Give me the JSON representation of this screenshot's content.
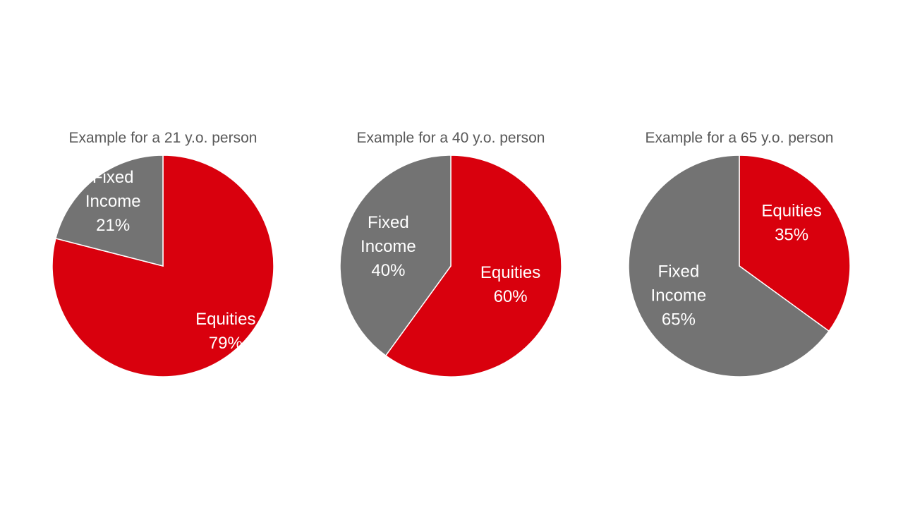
{
  "colors": {
    "equities": "#d9000d",
    "fixed_income": "#737373",
    "title_text": "#595959",
    "label_text": "#ffffff",
    "background": "#ffffff"
  },
  "chart_data": [
    {
      "type": "pie",
      "title": "Example for a 21 y.o. person",
      "slices": [
        {
          "key": "equities",
          "label_lines": [
            "Equities",
            "79%"
          ],
          "value": 79,
          "color": "#d9000d"
        },
        {
          "key": "fixed_income",
          "label_lines": [
            "Fixed",
            "Income",
            "21%"
          ],
          "value": 21,
          "color": "#737373"
        }
      ],
      "start_angle_deg": 0,
      "direction": "clockwise"
    },
    {
      "type": "pie",
      "title": "Example for a 40 y.o. person",
      "slices": [
        {
          "key": "equities",
          "label_lines": [
            "Equities",
            "60%"
          ],
          "value": 60,
          "color": "#d9000d"
        },
        {
          "key": "fixed_income",
          "label_lines": [
            "Fixed",
            "Income",
            "40%"
          ],
          "value": 40,
          "color": "#737373"
        }
      ],
      "start_angle_deg": 0,
      "direction": "clockwise"
    },
    {
      "type": "pie",
      "title": "Example for a 65 y.o. person",
      "slices": [
        {
          "key": "equities",
          "label_lines": [
            "Equities",
            "35%"
          ],
          "value": 35,
          "color": "#d9000d"
        },
        {
          "key": "fixed_income",
          "label_lines": [
            "Fixed",
            "Income",
            "65%"
          ],
          "value": 65,
          "color": "#737373"
        }
      ],
      "start_angle_deg": 0,
      "direction": "clockwise"
    }
  ]
}
